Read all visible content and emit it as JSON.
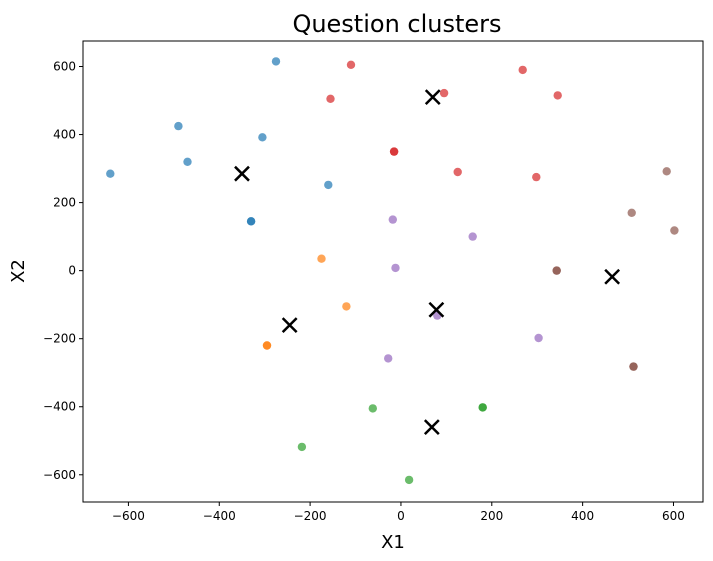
{
  "chart_data": {
    "type": "scatter",
    "title": "Question clusters",
    "xlabel": "X1",
    "ylabel": "X2",
    "xlim": [
      -700,
      665
    ],
    "ylim": [
      -680,
      675
    ],
    "xticks": [
      -600,
      -400,
      -200,
      0,
      200,
      400,
      600
    ],
    "yticks": [
      -600,
      -400,
      -200,
      0,
      200,
      400,
      600
    ],
    "xtick_labels": [
      "−600",
      "−400",
      "−200",
      "0",
      "200",
      "400",
      "600"
    ],
    "ytick_labels": [
      "−600",
      "−400",
      "−200",
      "0",
      "200",
      "400",
      "600"
    ],
    "grid": false,
    "legend": false,
    "series": [
      {
        "color": "#1f77b4",
        "points": [
          [
            -275,
            615
          ],
          [
            -490,
            425
          ],
          [
            -305,
            392
          ],
          [
            -470,
            320
          ],
          [
            -640,
            285
          ],
          [
            -160,
            252
          ],
          [
            -330,
            145
          ],
          [
            -330,
            145
          ]
        ]
      },
      {
        "color": "#ff7f0e",
        "points": [
          [
            -175,
            35
          ],
          [
            -120,
            -105
          ],
          [
            -295,
            -220
          ],
          [
            -295,
            -220
          ]
        ]
      },
      {
        "color": "#2ca02c",
        "points": [
          [
            -62,
            -405
          ],
          [
            180,
            -402
          ],
          [
            180,
            -402
          ],
          [
            -218,
            -518
          ],
          [
            18,
            -615
          ]
        ]
      },
      {
        "color": "#d62728",
        "points": [
          [
            -110,
            605
          ],
          [
            -155,
            505
          ],
          [
            95,
            522
          ],
          [
            268,
            590
          ],
          [
            345,
            515
          ],
          [
            -15,
            350
          ],
          [
            -15,
            350
          ],
          [
            125,
            290
          ],
          [
            298,
            275
          ]
        ]
      },
      {
        "color": "#9467bd",
        "points": [
          [
            -18,
            150
          ],
          [
            158,
            100
          ],
          [
            -12,
            8
          ],
          [
            80,
            -132
          ],
          [
            303,
            -198
          ],
          [
            -28,
            -258
          ]
        ]
      },
      {
        "color": "#8c564b",
        "points": [
          [
            585,
            292
          ],
          [
            508,
            170
          ],
          [
            602,
            118
          ],
          [
            343,
            0
          ],
          [
            343,
            0
          ],
          [
            512,
            -282
          ],
          [
            512,
            -282
          ]
        ]
      }
    ],
    "centroids": {
      "marker": "x",
      "color": "#000000",
      "points": [
        [
          -350,
          285
        ],
        [
          -245,
          -160
        ],
        [
          70,
          510
        ],
        [
          78,
          -115
        ],
        [
          68,
          -460
        ],
        [
          465,
          -18
        ]
      ]
    }
  }
}
